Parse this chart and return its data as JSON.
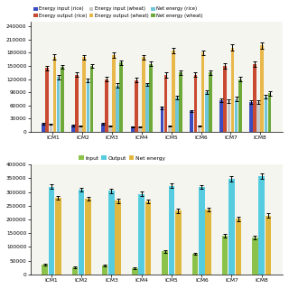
{
  "top_chart": {
    "categories": [
      "ICM1",
      "ICM2",
      "ICM3",
      "ICM4",
      "ICM5",
      "ICM6",
      "ICM7",
      "ICM8"
    ],
    "series_order": [
      "Energy input (rice)",
      "Energy output (rice)",
      "Energy input (wheat)",
      "Energy output (wheat)",
      "Net energy (rice)",
      "Net energy (wheat)"
    ],
    "series": {
      "Energy input (rice)": [
        18000,
        14000,
        18000,
        12000,
        55000,
        47000,
        72000,
        68000
      ],
      "Energy output (rice)": [
        145000,
        130000,
        120000,
        118000,
        130000,
        130000,
        150000,
        155000
      ],
      "Energy input (wheat)": [
        18000,
        14000,
        14000,
        11000,
        14000,
        14000,
        70000,
        68000
      ],
      "Energy output (wheat)": [
        170000,
        170000,
        175000,
        170000,
        185000,
        180000,
        192000,
        197000
      ],
      "Net energy (rice)": [
        125000,
        118000,
        105000,
        108000,
        78000,
        90000,
        75000,
        80000
      ],
      "Net energy (wheat)": [
        148000,
        150000,
        158000,
        155000,
        135000,
        135000,
        120000,
        88000
      ]
    },
    "errors": {
      "Energy input (rice)": [
        2000,
        1500,
        2000,
        1200,
        3000,
        2500,
        4000,
        3500
      ],
      "Energy output (rice)": [
        5000,
        5000,
        5000,
        5000,
        6000,
        5000,
        6000,
        6000
      ],
      "Energy input (wheat)": [
        1500,
        1200,
        1200,
        1000,
        1200,
        1200,
        4000,
        3500
      ],
      "Energy output (wheat)": [
        6000,
        5000,
        6000,
        5000,
        7000,
        6000,
        7000,
        7000
      ],
      "Net energy (rice)": [
        5000,
        4000,
        5000,
        4000,
        5000,
        4000,
        5000,
        4000
      ],
      "Net energy (wheat)": [
        5000,
        5000,
        5000,
        5000,
        5000,
        5000,
        5000,
        5000
      ]
    },
    "colors": {
      "Energy input (rice)": "#3B4CC0",
      "Energy output (rice)": "#C84B31",
      "Energy input (wheat)": "#C8C8C8",
      "Energy output (wheat)": "#E8B84B",
      "Net energy (rice)": "#6EC6D8",
      "Net energy (wheat)": "#6EAA3A"
    },
    "ylim": [
      0,
      250000
    ],
    "yticks": [
      0,
      30000,
      60000,
      90000,
      120000,
      150000,
      180000,
      210000,
      240000
    ]
  },
  "bottom_chart": {
    "categories": [
      "ICM1",
      "ICM2",
      "ICM3",
      "ICM4",
      "ICM5",
      "ICM6",
      "ICM7",
      "ICM8"
    ],
    "series_order": [
      "Input",
      "Output",
      "Net energy"
    ],
    "series": {
      "Input": [
        36000,
        26000,
        32000,
        23000,
        85000,
        76000,
        142000,
        135000
      ],
      "Output": [
        320000,
        308000,
        304000,
        294000,
        323000,
        319000,
        348000,
        358000
      ],
      "Net energy": [
        280000,
        275000,
        268000,
        265000,
        232000,
        237000,
        203000,
        215000
      ]
    },
    "errors": {
      "Input": [
        3000,
        2500,
        3000,
        2000,
        5000,
        4000,
        7000,
        6000
      ],
      "Output": [
        8000,
        7000,
        7000,
        7000,
        8000,
        7000,
        10000,
        10000
      ],
      "Net energy": [
        7000,
        7000,
        7000,
        7000,
        8000,
        7000,
        8000,
        8000
      ]
    },
    "colors": {
      "Input": "#8BC34A",
      "Output": "#56CCE0",
      "Net energy": "#E0B840"
    },
    "ylim": [
      0,
      400000
    ],
    "yticks": [
      0,
      50000,
      100000,
      150000,
      200000,
      250000,
      300000,
      350000,
      400000
    ]
  },
  "bg_color": "#F5F5F0"
}
